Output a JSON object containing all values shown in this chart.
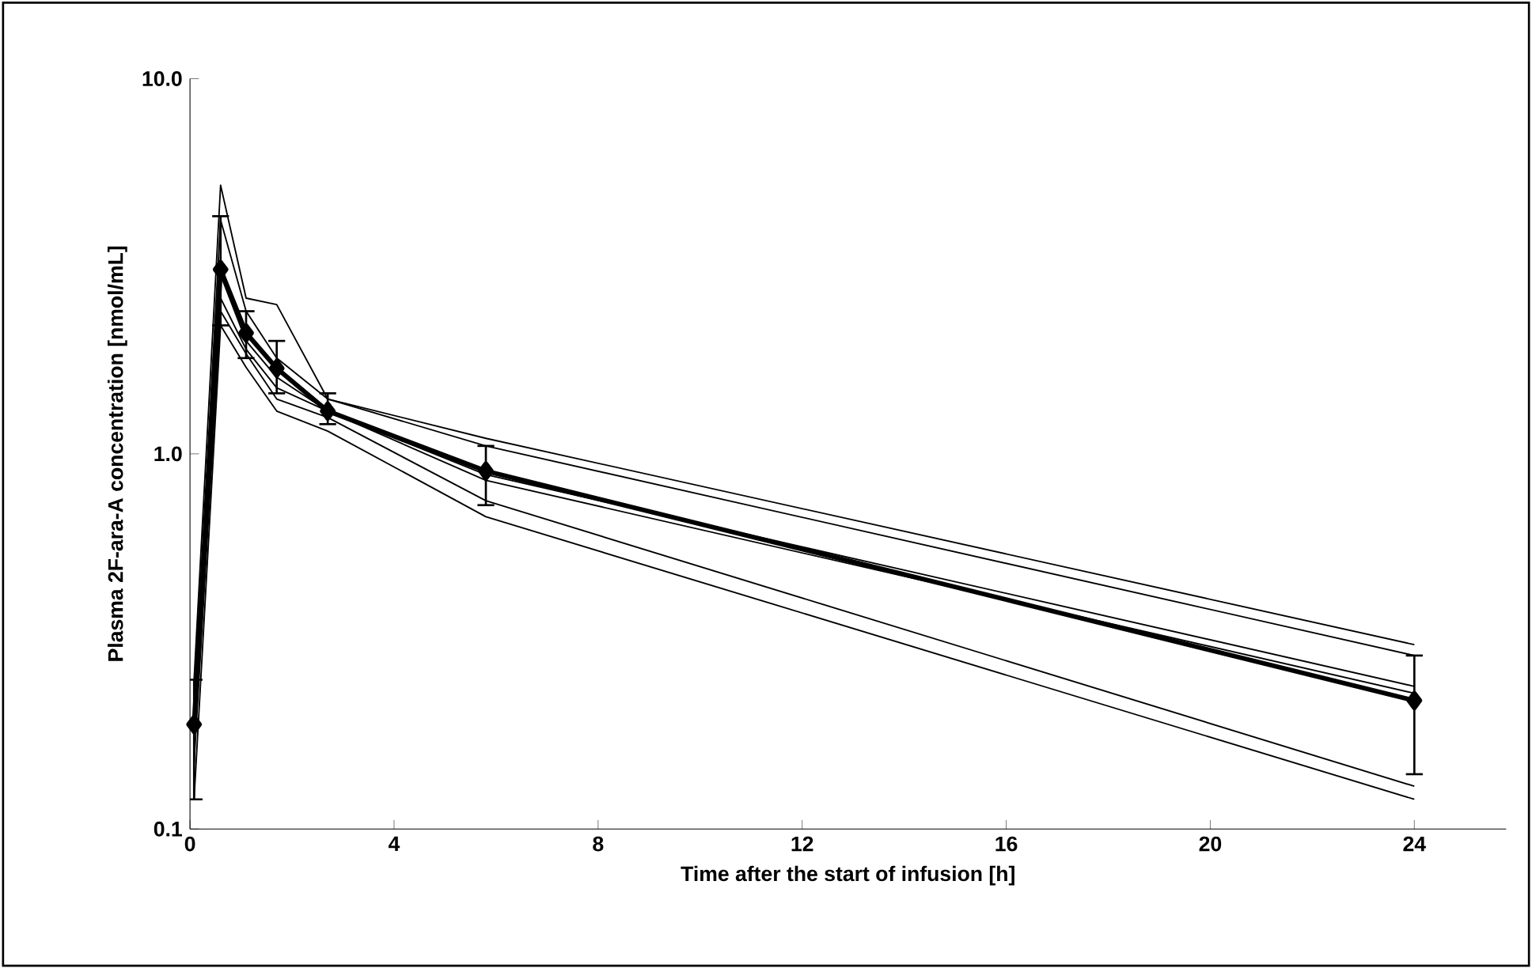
{
  "chart_data": {
    "type": "line",
    "xlabel": "Time after the start of infusion [h]",
    "ylabel": "Plasma 2F-ara-A concentration [nmol/mL]",
    "x": [
      0.08,
      0.6,
      1.1,
      1.7,
      2.7,
      5.8,
      24
    ],
    "log": "y",
    "xlim": [
      0,
      25.8
    ],
    "ylim": [
      0.1,
      10
    ],
    "xticks": [
      0,
      4,
      8,
      12,
      16,
      20,
      24
    ],
    "yticks": [
      {
        "value": 0.1,
        "label": "0.1"
      },
      {
        "value": 1,
        "label": "1.0"
      },
      {
        "value": 10,
        "label": "10.0"
      }
    ],
    "grid": false,
    "series": [
      {
        "color": "#000000",
        "values": [
          0.25,
          5.2,
          2.6,
          2.5,
          1.4,
          1.1,
          0.31
        ]
      },
      {
        "color": "#000000",
        "values": [
          0.22,
          4.2,
          2.4,
          1.8,
          1.4,
          1.05,
          0.29
        ]
      },
      {
        "color": "#000000",
        "values": [
          0.2,
          3.0,
          2.0,
          1.6,
          1.3,
          0.88,
          0.24
        ]
      },
      {
        "color": "#000000",
        "values": [
          0.18,
          2.6,
          1.9,
          1.5,
          1.3,
          0.85,
          0.23
        ]
      },
      {
        "color": "#000000",
        "values": [
          0.15,
          2.4,
          1.85,
          1.4,
          1.25,
          0.75,
          0.13
        ]
      },
      {
        "color": "#000000",
        "values": [
          0.12,
          2.2,
          1.7,
          1.3,
          1.15,
          0.68,
          0.12
        ]
      },
      {
        "color": "#000000",
        "marker": "diamond",
        "values": [
          0.19,
          3.1,
          2.1,
          1.69,
          1.3,
          0.9,
          0.22
        ],
        "errors": [
          [
            0.12,
            0.25
          ],
          [
            2.2,
            4.3
          ],
          [
            1.8,
            2.4
          ],
          [
            1.45,
            2.0
          ],
          [
            1.2,
            1.45
          ],
          [
            0.73,
            1.05
          ],
          [
            0.14,
            0.29
          ]
        ]
      }
    ]
  }
}
